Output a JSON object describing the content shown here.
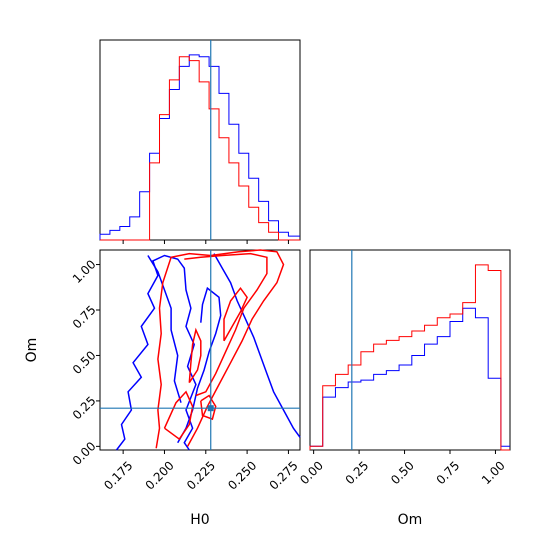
{
  "chart_data": {
    "type": "corner",
    "parameters": [
      "H0",
      "Om"
    ],
    "truth": {
      "H0": 0.228,
      "Om": 0.21
    },
    "ranges": {
      "H0": [
        0.161,
        0.282
      ],
      "Om": [
        -0.02,
        1.08
      ]
    },
    "series_colors": [
      "#0000ff",
      "#ff0000"
    ],
    "truth_color": "#1f77b4",
    "hist_H0": {
      "bin_edges": [
        0.161,
        0.167,
        0.173,
        0.179,
        0.185,
        0.191,
        0.197,
        0.203,
        0.209,
        0.215,
        0.221,
        0.227,
        0.233,
        0.239,
        0.245,
        0.251,
        0.257,
        0.263,
        0.269,
        0.275,
        0.282
      ],
      "blue": [
        3,
        5,
        7,
        12,
        25,
        45,
        63,
        78,
        90,
        96,
        95,
        90,
        76,
        60,
        45,
        32,
        20,
        10,
        4,
        2
      ],
      "red": [
        0,
        0,
        0,
        0,
        0,
        40,
        65,
        83,
        95,
        93,
        82,
        68,
        53,
        40,
        28,
        17,
        9,
        4,
        0,
        0
      ]
    },
    "hist_Om": {
      "bin_edges": [
        -0.02,
        0.05,
        0.12,
        0.19,
        0.26,
        0.33,
        0.4,
        0.47,
        0.54,
        0.61,
        0.68,
        0.75,
        0.82,
        0.89,
        0.96,
        1.03,
        1.08
      ],
      "blue": [
        2,
        28,
        33,
        36,
        37,
        40,
        42,
        45,
        50,
        56,
        60,
        68,
        75,
        70,
        38,
        2
      ],
      "red": [
        2,
        34,
        40,
        45,
        52,
        56,
        58,
        60,
        63,
        66,
        70,
        72,
        78,
        98,
        95,
        0
      ]
    },
    "xticks": {
      "H0": {
        "values": [
          0.175,
          0.2,
          0.225,
          0.25,
          0.275
        ],
        "labels": [
          "0.175",
          "0.200",
          "0.225",
          "0.250",
          "0.275"
        ]
      },
      "Om": {
        "values": [
          0.0,
          0.25,
          0.5,
          0.75,
          1.0
        ],
        "labels": [
          "0.00",
          "0.25",
          "0.50",
          "0.75",
          "1.00"
        ]
      }
    },
    "yticks": {
      "Om": {
        "values": [
          0.0,
          0.25,
          0.5,
          0.75,
          1.0
        ],
        "labels": [
          "0.00",
          "0.25",
          "0.50",
          "0.75",
          "1.00"
        ]
      }
    },
    "contours_2d": [
      {
        "series": 0,
        "points": [
          [
            0.171,
            -0.02
          ],
          [
            0.176,
            0.04
          ],
          [
            0.174,
            0.12
          ],
          [
            0.18,
            0.2
          ],
          [
            0.178,
            0.3
          ],
          [
            0.186,
            0.38
          ],
          [
            0.181,
            0.46
          ],
          [
            0.19,
            0.56
          ],
          [
            0.186,
            0.66
          ],
          [
            0.194,
            0.76
          ],
          [
            0.19,
            0.84
          ],
          [
            0.196,
            0.94
          ],
          [
            0.193,
            1.02
          ],
          [
            0.2,
            1.05
          ],
          [
            0.208,
            1.03
          ],
          [
            0.212,
            0.98
          ],
          [
            0.213,
            0.86
          ],
          [
            0.216,
            0.76
          ],
          [
            0.213,
            0.66
          ],
          [
            0.218,
            0.56
          ],
          [
            0.214,
            0.44
          ],
          [
            0.219,
            0.34
          ],
          [
            0.213,
            0.2
          ],
          [
            0.217,
            0.1
          ],
          [
            0.212,
            0.02
          ],
          [
            0.215,
            -0.02
          ]
        ]
      },
      {
        "series": 0,
        "points": [
          [
            0.23,
            1.06
          ],
          [
            0.235,
            0.98
          ],
          [
            0.24,
            0.9
          ],
          [
            0.244,
            0.8
          ],
          [
            0.249,
            0.7
          ],
          [
            0.254,
            0.6
          ],
          [
            0.258,
            0.5
          ],
          [
            0.262,
            0.4
          ],
          [
            0.266,
            0.3
          ],
          [
            0.272,
            0.2
          ],
          [
            0.278,
            0.1
          ],
          [
            0.282,
            0.05
          ]
        ]
      },
      {
        "series": 0,
        "points": [
          [
            0.208,
            0.02
          ],
          [
            0.213,
            0.1
          ],
          [
            0.217,
            0.2
          ],
          [
            0.22,
            0.32
          ],
          [
            0.224,
            0.42
          ],
          [
            0.227,
            0.52
          ],
          [
            0.231,
            0.62
          ],
          [
            0.234,
            0.72
          ],
          [
            0.233,
            0.82
          ],
          [
            0.226,
            0.87
          ],
          [
            0.223,
            0.78
          ],
          [
            0.222,
            0.68
          ]
        ]
      },
      {
        "series": 0,
        "points": [
          [
            0.19,
            1.05
          ],
          [
            0.196,
            0.96
          ],
          [
            0.2,
            0.86
          ],
          [
            0.204,
            0.76
          ],
          [
            0.204,
            0.64
          ],
          [
            0.208,
            0.5
          ],
          [
            0.206,
            0.36
          ],
          [
            0.21,
            0.24
          ]
        ]
      },
      {
        "series": 1,
        "points": [
          [
            0.195,
            -0.01
          ],
          [
            0.197,
            0.1
          ],
          [
            0.196,
            0.2
          ],
          [
            0.198,
            0.34
          ],
          [
            0.196,
            0.48
          ],
          [
            0.198,
            0.62
          ],
          [
            0.197,
            0.76
          ],
          [
            0.199,
            0.9
          ],
          [
            0.204,
            1.04
          ],
          [
            0.215,
            1.06
          ],
          [
            0.228,
            1.05
          ],
          [
            0.245,
            1.07
          ],
          [
            0.258,
            1.08
          ],
          [
            0.268,
            1.07
          ],
          [
            0.272,
            1.0
          ],
          [
            0.268,
            0.9
          ],
          [
            0.26,
            0.8
          ],
          [
            0.253,
            0.7
          ],
          [
            0.247,
            0.58
          ],
          [
            0.24,
            0.46
          ],
          [
            0.233,
            0.34
          ],
          [
            0.226,
            0.22
          ],
          [
            0.22,
            0.1
          ],
          [
            0.214,
            0.0
          ]
        ]
      },
      {
        "series": 1,
        "points": [
          [
            0.212,
            1.03
          ],
          [
            0.222,
            1.04
          ],
          [
            0.235,
            1.05
          ],
          [
            0.252,
            1.06
          ],
          [
            0.262,
            1.04
          ],
          [
            0.262,
            0.95
          ],
          [
            0.256,
            0.86
          ],
          [
            0.248,
            0.76
          ],
          [
            0.243,
            0.64
          ],
          [
            0.237,
            0.52
          ],
          [
            0.231,
            0.4
          ],
          [
            0.225,
            0.3
          ],
          [
            0.219,
            0.28
          ]
        ]
      },
      {
        "series": 1,
        "points": [
          [
            0.215,
            0.35
          ],
          [
            0.22,
            0.42
          ],
          [
            0.222,
            0.5
          ],
          [
            0.222,
            0.58
          ],
          [
            0.219,
            0.64
          ],
          [
            0.217,
            0.56
          ],
          [
            0.216,
            0.46
          ],
          [
            0.215,
            0.35
          ]
        ]
      },
      {
        "series": 1,
        "points": [
          [
            0.2,
            0.1
          ],
          [
            0.207,
            0.24
          ],
          [
            0.213,
            0.3
          ],
          [
            0.217,
            0.22
          ],
          [
            0.215,
            0.12
          ],
          [
            0.209,
            0.04
          ],
          [
            0.2,
            0.1
          ]
        ]
      },
      {
        "series": 1,
        "points": [
          [
            0.236,
            0.58
          ],
          [
            0.241,
            0.66
          ],
          [
            0.246,
            0.74
          ],
          [
            0.25,
            0.82
          ],
          [
            0.246,
            0.87
          ],
          [
            0.24,
            0.8
          ],
          [
            0.236,
            0.7
          ],
          [
            0.236,
            0.58
          ]
        ]
      },
      {
        "series": 1,
        "points": [
          [
            0.222,
            0.25
          ],
          [
            0.227,
            0.28
          ],
          [
            0.231,
            0.22
          ],
          [
            0.229,
            0.15
          ],
          [
            0.223,
            0.17
          ],
          [
            0.222,
            0.25
          ]
        ]
      }
    ],
    "xlabels": [
      "H0",
      "Om"
    ],
    "ylabels": [
      "Om"
    ]
  }
}
